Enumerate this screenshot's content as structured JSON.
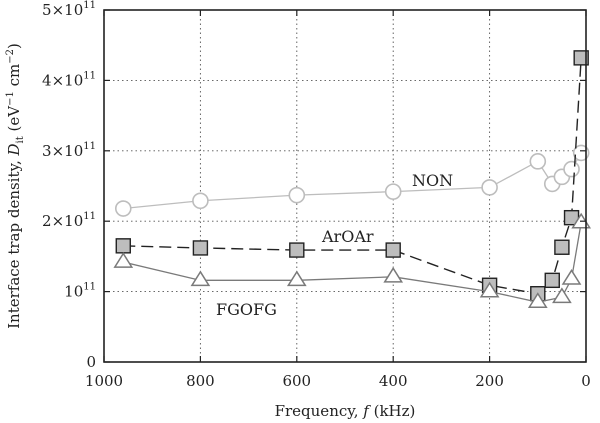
{
  "chart_data": {
    "type": "line",
    "x_axis": {
      "label": "Frequency, f (kHz)",
      "range": [
        1000,
        0
      ],
      "reversed": true,
      "ticks": [
        1000,
        800,
        600,
        400,
        200,
        0
      ],
      "tick_labels": [
        "1000",
        "800",
        "600",
        "400",
        "200",
        "0"
      ]
    },
    "y_axis": {
      "label": "Interface trap density, D_it (eV^-1 cm^-2)",
      "range": [
        0,
        500000000000.0
      ],
      "ticks": [
        0,
        100000000000.0,
        200000000000.0,
        300000000000.0,
        400000000000.0,
        500000000000.0
      ],
      "tick_labels": [
        "0",
        "10^11",
        "2×10^11",
        "3×10^11",
        "4×10^11",
        "5×10^11"
      ]
    },
    "grid": "dotted",
    "series": [
      {
        "name": "NON",
        "marker": "circle",
        "line": "solid",
        "color": "#bdbdbd",
        "marker_fill": "#ffffff",
        "points": [
          [
            960,
            218000000000.0
          ],
          [
            800,
            229000000000.0
          ],
          [
            600,
            237000000000.0
          ],
          [
            400,
            242000000000.0
          ],
          [
            200,
            248000000000.0
          ],
          [
            100,
            285000000000.0
          ],
          [
            70,
            253000000000.0
          ],
          [
            50,
            263000000000.0
          ],
          [
            30,
            274000000000.0
          ],
          [
            10,
            297000000000.0
          ]
        ]
      },
      {
        "name": "ArOAr",
        "marker": "square",
        "line": "dashed",
        "color": "#222222",
        "marker_fill": "#bdbdbd",
        "points": [
          [
            960,
            165000000000.0
          ],
          [
            800,
            162000000000.0
          ],
          [
            600,
            159000000000.0
          ],
          [
            400,
            159000000000.0
          ],
          [
            200,
            109000000000.0
          ],
          [
            100,
            97000000000.0
          ],
          [
            70,
            116000000000.0
          ],
          [
            50,
            163000000000.0
          ],
          [
            30,
            205000000000.0
          ],
          [
            10,
            432000000000.0
          ]
        ]
      },
      {
        "name": "FGOFG",
        "marker": "triangle",
        "line": "solid",
        "color": "#7a7a7a",
        "marker_fill": "#ffffff",
        "points": [
          [
            960,
            142000000000.0
          ],
          [
            800,
            116000000000.0
          ],
          [
            600,
            116000000000.0
          ],
          [
            400,
            121000000000.0
          ],
          [
            200,
            100000000000.0
          ],
          [
            100,
            85000000000.0
          ],
          [
            50,
            92000000000.0
          ],
          [
            30,
            118000000000.0
          ],
          [
            10,
            198000000000.0
          ]
        ]
      }
    ],
    "annotations": [
      "NON",
      "ArOAr",
      "FGOFG"
    ]
  }
}
